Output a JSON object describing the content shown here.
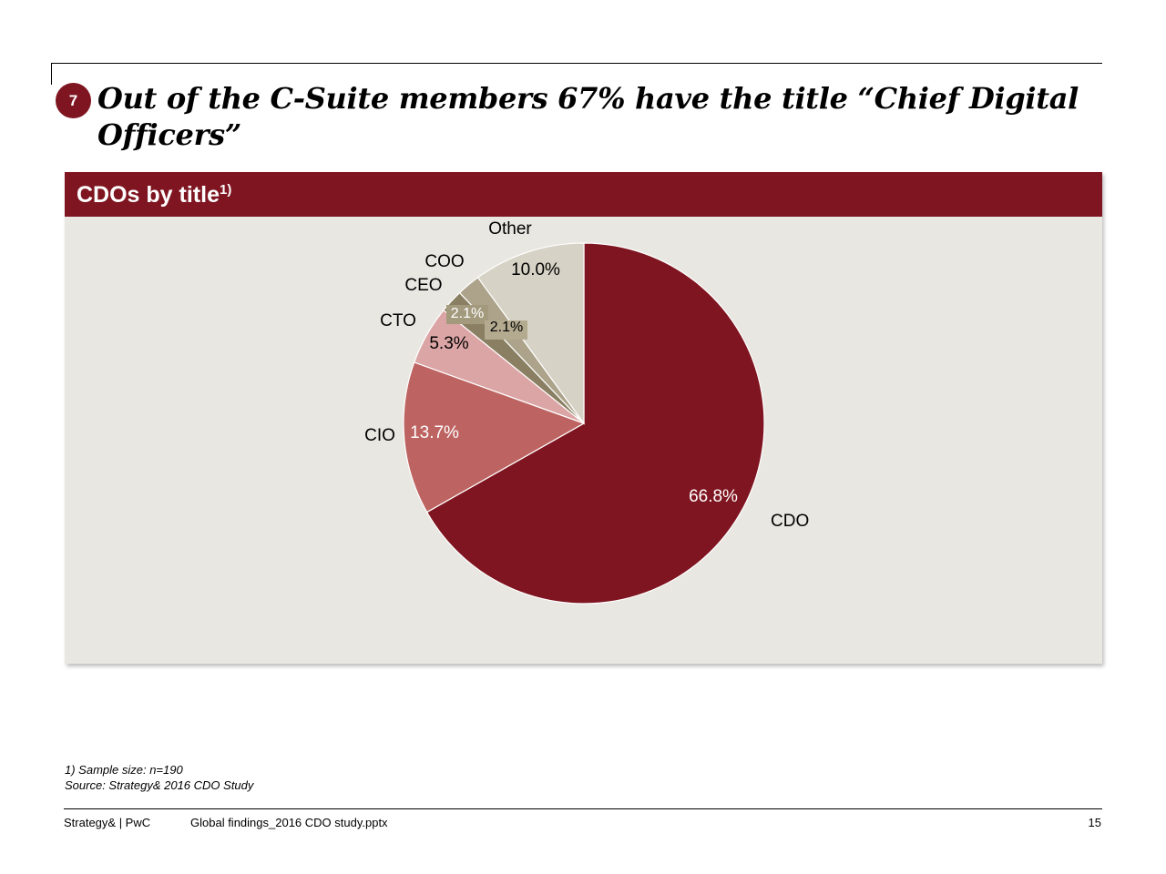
{
  "slide": {
    "number": "7",
    "headline": "Out of the C-Suite members 67% have the title “Chief Digital Officers”"
  },
  "panel": {
    "title": "CDOs by title",
    "title_sup": "1)"
  },
  "chart_data": {
    "type": "pie",
    "title": "CDOs by title",
    "start": "12 o'clock",
    "direction": "clockwise",
    "slices": [
      {
        "name": "CDO",
        "value": 66.8,
        "label": "66.8%",
        "color": "#7f1520"
      },
      {
        "name": "CIO",
        "value": 13.7,
        "label": "13.7%",
        "color": "#bd6462"
      },
      {
        "name": "CTO",
        "value": 5.3,
        "label": "5.3%",
        "color": "#dca5a5"
      },
      {
        "name": "CEO",
        "value": 2.1,
        "label": "2.1%",
        "color": "#8a7f62"
      },
      {
        "name": "COO",
        "value": 2.1,
        "label": "2.1%",
        "color": "#aca38a"
      },
      {
        "name": "Other",
        "value": 10.0,
        "label": "10.0%",
        "color": "#d6d2c5"
      }
    ]
  },
  "footnotes": {
    "note1": "1) Sample size: n=190",
    "source": "Source: Strategy& 2016 CDO Study"
  },
  "footer": {
    "brand": "Strategy& | PwC",
    "file": "Global findings_2016 CDO study.pptx",
    "page": "15"
  }
}
